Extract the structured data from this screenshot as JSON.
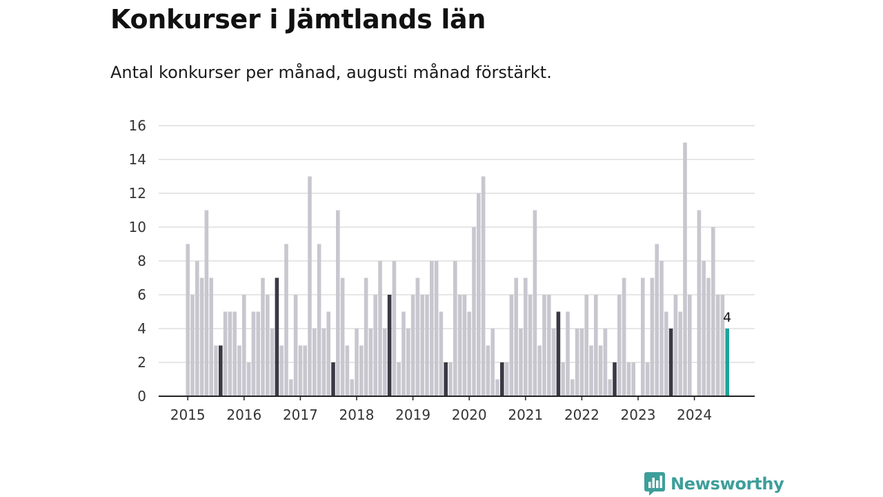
{
  "title": "Konkurser i Jämtlands län",
  "subtitle": "Antal konkurser per månad, augusti månad förstärkt.",
  "brand": {
    "name": "Newsworthy",
    "color": "#3d9e9a",
    "icon": "newsworthy-logo-icon"
  },
  "colors": {
    "bar": "#c8c7cf",
    "highlight": "#3a3944",
    "latest": "#1aa39a",
    "grid": "#dedede",
    "axis": "#222222"
  },
  "chart_data": {
    "type": "bar",
    "title": "Konkurser i Jämtlands län",
    "subtitle": "Antal konkurser per månad, augusti månad förstärkt.",
    "xlabel": "",
    "ylabel": "",
    "ylim": [
      0,
      16
    ],
    "yticks": [
      0,
      2,
      4,
      6,
      8,
      10,
      12,
      14,
      16
    ],
    "xticks": [
      "2015",
      "2016",
      "2017",
      "2018",
      "2019",
      "2020",
      "2021",
      "2022",
      "2023",
      "2024"
    ],
    "grid": true,
    "start_period": "2015-01",
    "highlight_month": "augusti",
    "latest_label": "4",
    "values": [
      9,
      6,
      8,
      7,
      11,
      7,
      3,
      3,
      5,
      5,
      5,
      3,
      6,
      2,
      5,
      5,
      7,
      6,
      4,
      7,
      3,
      9,
      1,
      6,
      3,
      3,
      13,
      4,
      9,
      4,
      5,
      2,
      11,
      7,
      3,
      1,
      4,
      3,
      7,
      4,
      6,
      8,
      4,
      6,
      8,
      2,
      5,
      4,
      6,
      7,
      6,
      6,
      8,
      8,
      5,
      2,
      2,
      8,
      6,
      6,
      5,
      10,
      12,
      13,
      3,
      4,
      1,
      2,
      2,
      6,
      7,
      4,
      7,
      6,
      11,
      3,
      6,
      6,
      4,
      5,
      2,
      5,
      1,
      4,
      4,
      6,
      3,
      6,
      3,
      4,
      1,
      2,
      6,
      7,
      2,
      2,
      0,
      7,
      2,
      7,
      9,
      8,
      5,
      4,
      6,
      5,
      15,
      6,
      0,
      11,
      8,
      7,
      10,
      6,
      6,
      4
    ]
  }
}
